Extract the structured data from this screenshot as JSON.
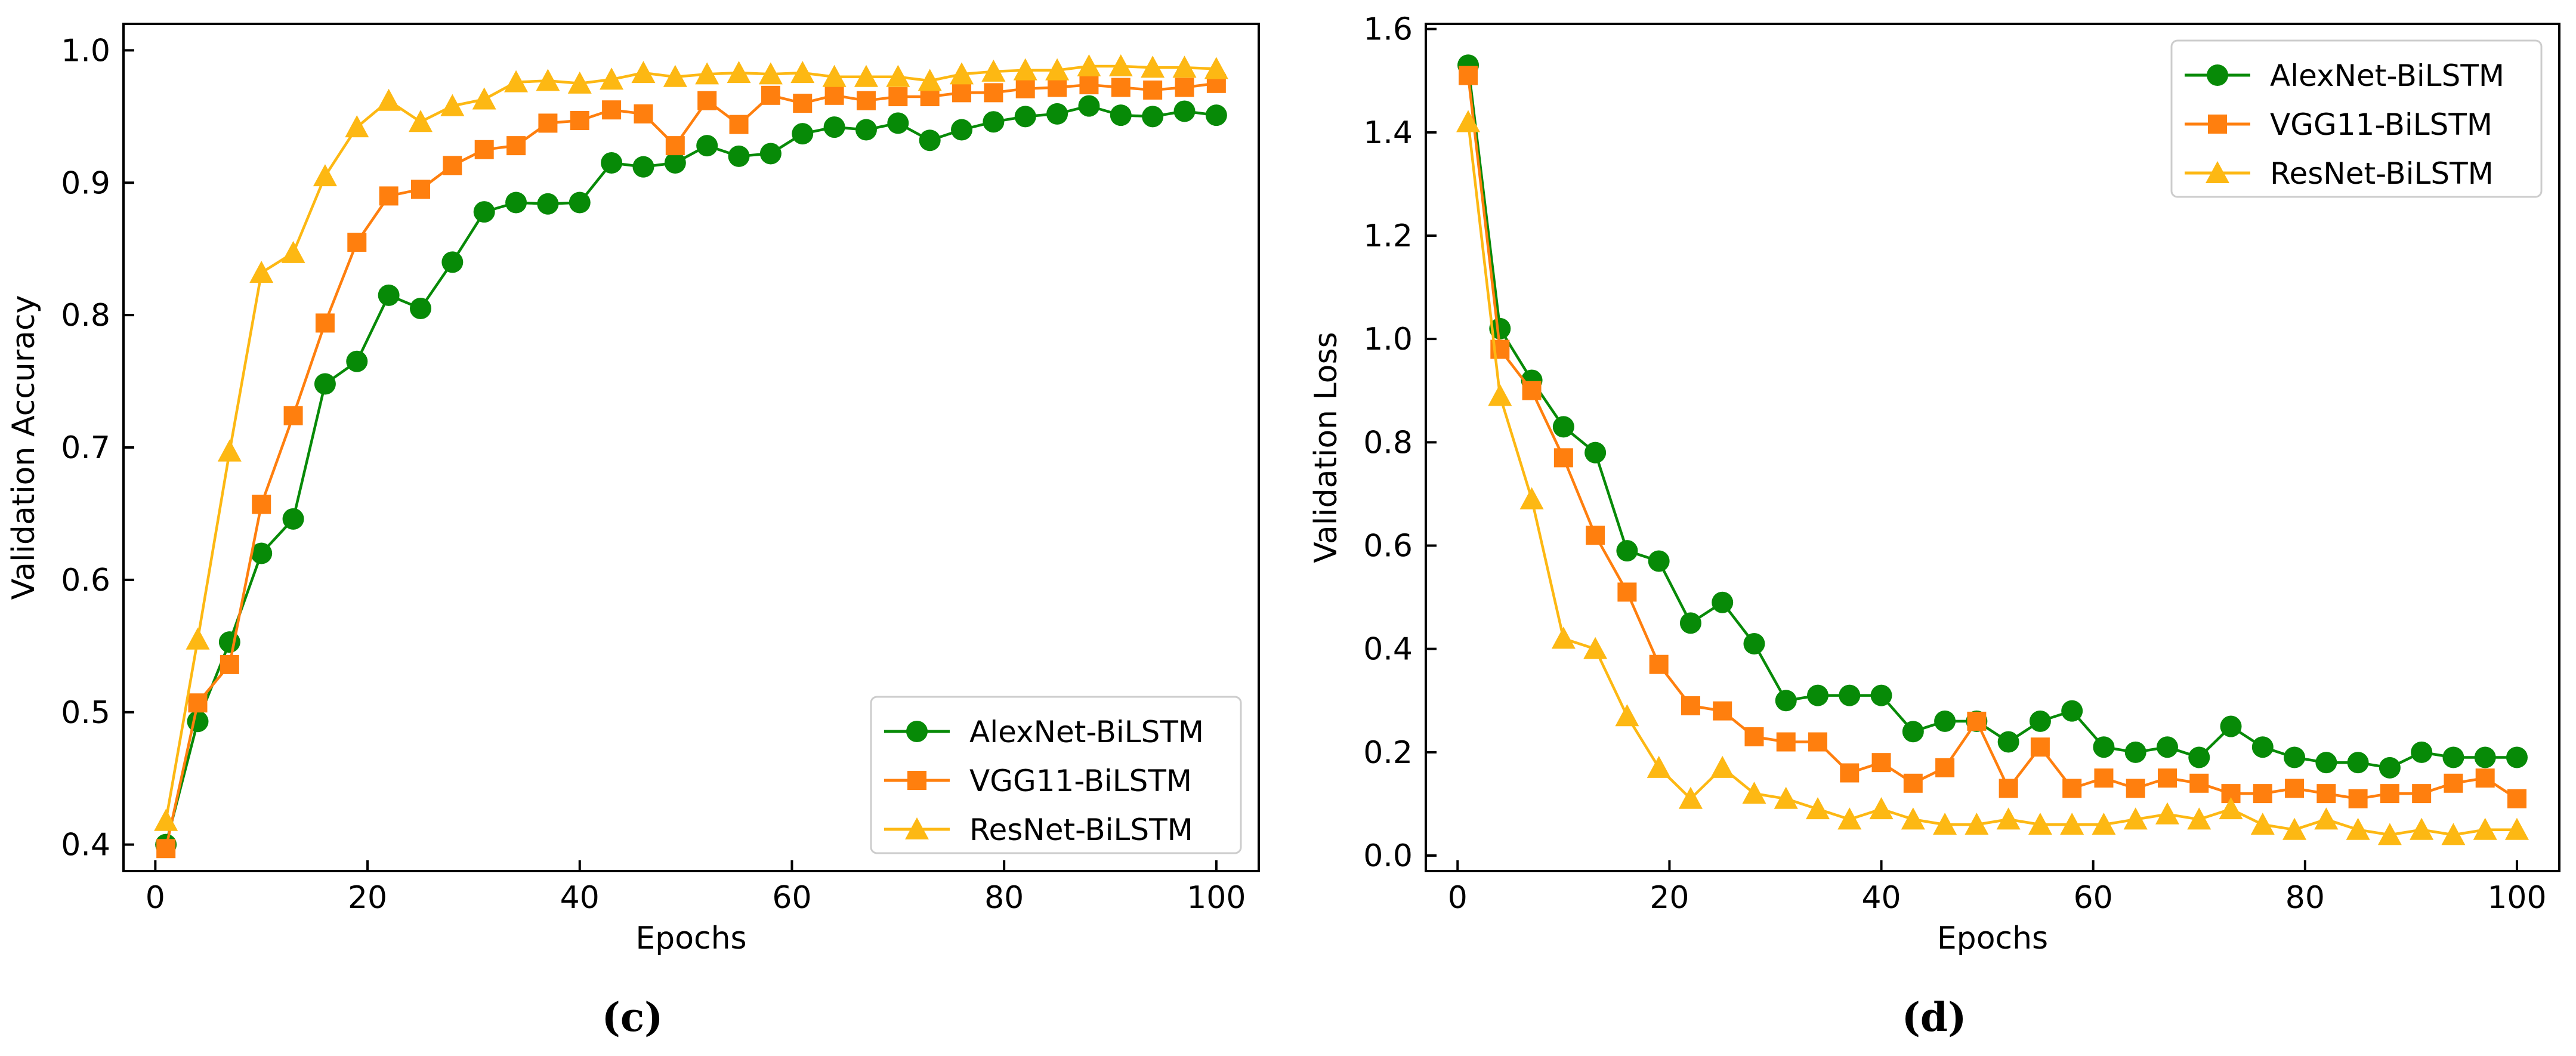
{
  "chart_data": [
    {
      "panel": "c",
      "type": "line",
      "caption": "(c)",
      "xlabel": "Epochs",
      "ylabel": "Validation Accuracy",
      "xlim": [
        -3,
        104
      ],
      "ylim": [
        0.38,
        1.02
      ],
      "xticks": [
        0,
        20,
        40,
        60,
        80,
        100
      ],
      "xtick_labels": [
        "0",
        "20",
        "40",
        "60",
        "80",
        "100"
      ],
      "yticks": [
        0.4,
        0.5,
        0.6,
        0.7,
        0.8,
        0.9,
        1.0
      ],
      "ytick_labels": [
        "0.4",
        "0.5",
        "0.6",
        "0.7",
        "0.8",
        "0.9",
        "1.0"
      ],
      "legend_position": "lower right",
      "grid": false,
      "series": [
        {
          "name": "AlexNet-BiLSTM",
          "color": "#078a07",
          "marker": "circle",
          "x": [
            1,
            4,
            7,
            10,
            13,
            16,
            19,
            22,
            25,
            28,
            31,
            34,
            37,
            40,
            43,
            46,
            49,
            52,
            55,
            58,
            61,
            64,
            67,
            70,
            73,
            76,
            79,
            82,
            85,
            88,
            91,
            94,
            97,
            100
          ],
          "values": [
            0.4,
            0.493,
            0.553,
            0.62,
            0.646,
            0.748,
            0.765,
            0.815,
            0.805,
            0.84,
            0.878,
            0.885,
            0.884,
            0.885,
            0.915,
            0.912,
            0.915,
            0.928,
            0.92,
            0.922,
            0.937,
            0.942,
            0.94,
            0.945,
            0.932,
            0.94,
            0.946,
            0.95,
            0.952,
            0.958,
            0.951,
            0.95,
            0.954,
            0.951
          ]
        },
        {
          "name": "VGG11-BiLSTM",
          "color": "#ff7f0e",
          "marker": "square",
          "x": [
            1,
            4,
            7,
            10,
            13,
            16,
            19,
            22,
            25,
            28,
            31,
            34,
            37,
            40,
            43,
            46,
            49,
            52,
            55,
            58,
            61,
            64,
            67,
            70,
            73,
            76,
            79,
            82,
            85,
            88,
            91,
            94,
            97,
            100
          ],
          "values": [
            0.397,
            0.507,
            0.536,
            0.657,
            0.724,
            0.794,
            0.855,
            0.89,
            0.895,
            0.913,
            0.925,
            0.928,
            0.945,
            0.947,
            0.955,
            0.952,
            0.928,
            0.962,
            0.944,
            0.966,
            0.96,
            0.966,
            0.962,
            0.965,
            0.965,
            0.968,
            0.968,
            0.971,
            0.972,
            0.974,
            0.972,
            0.97,
            0.972,
            0.975
          ]
        },
        {
          "name": "ResNet-BiLSTM",
          "color": "#fdb813",
          "marker": "triangle",
          "x": [
            1,
            4,
            7,
            10,
            13,
            16,
            19,
            22,
            25,
            28,
            31,
            34,
            37,
            40,
            43,
            46,
            49,
            52,
            55,
            58,
            61,
            64,
            67,
            70,
            73,
            76,
            79,
            82,
            85,
            88,
            91,
            94,
            97,
            100
          ],
          "values": [
            0.418,
            0.555,
            0.697,
            0.832,
            0.847,
            0.905,
            0.942,
            0.962,
            0.946,
            0.958,
            0.963,
            0.976,
            0.977,
            0.975,
            0.978,
            0.983,
            0.98,
            0.982,
            0.983,
            0.982,
            0.983,
            0.98,
            0.98,
            0.98,
            0.977,
            0.982,
            0.984,
            0.985,
            0.985,
            0.988,
            0.988,
            0.987,
            0.987,
            0.986
          ]
        }
      ]
    },
    {
      "panel": "d",
      "type": "line",
      "caption": "(d)",
      "xlabel": "Epochs",
      "ylabel": "Validation Loss",
      "xlim": [
        -3,
        104
      ],
      "ylim": [
        -0.03,
        1.61
      ],
      "xticks": [
        0,
        20,
        40,
        60,
        80,
        100
      ],
      "xtick_labels": [
        "0",
        "20",
        "40",
        "60",
        "80",
        "100"
      ],
      "yticks": [
        0.0,
        0.2,
        0.4,
        0.6,
        0.8,
        1.0,
        1.2,
        1.4,
        1.6
      ],
      "ytick_labels": [
        "0.0",
        "0.2",
        "0.4",
        "0.6",
        "0.8",
        "1.0",
        "1.2",
        "1.4",
        "1.6"
      ],
      "legend_position": "upper right",
      "grid": false,
      "series": [
        {
          "name": "AlexNet-BiLSTM",
          "color": "#078a07",
          "marker": "circle",
          "x": [
            1,
            4,
            7,
            10,
            13,
            16,
            19,
            22,
            25,
            28,
            31,
            34,
            37,
            40,
            43,
            46,
            49,
            52,
            55,
            58,
            61,
            64,
            67,
            70,
            73,
            76,
            79,
            82,
            85,
            88,
            91,
            94,
            97,
            100
          ],
          "values": [
            1.53,
            1.02,
            0.92,
            0.83,
            0.78,
            0.59,
            0.57,
            0.45,
            0.49,
            0.41,
            0.3,
            0.31,
            0.31,
            0.31,
            0.24,
            0.26,
            0.26,
            0.22,
            0.26,
            0.28,
            0.21,
            0.2,
            0.21,
            0.19,
            0.25,
            0.21,
            0.19,
            0.18,
            0.18,
            0.17,
            0.2,
            0.19,
            0.19,
            0.19
          ]
        },
        {
          "name": "VGG11-BiLSTM",
          "color": "#ff7f0e",
          "marker": "square",
          "x": [
            1,
            4,
            7,
            10,
            13,
            16,
            19,
            22,
            25,
            28,
            31,
            34,
            37,
            40,
            43,
            46,
            49,
            52,
            55,
            58,
            61,
            64,
            67,
            70,
            73,
            76,
            79,
            82,
            85,
            88,
            91,
            94,
            97,
            100
          ],
          "values": [
            1.51,
            0.98,
            0.9,
            0.77,
            0.62,
            0.51,
            0.37,
            0.29,
            0.28,
            0.23,
            0.22,
            0.22,
            0.16,
            0.18,
            0.14,
            0.17,
            0.26,
            0.13,
            0.21,
            0.13,
            0.15,
            0.13,
            0.15,
            0.14,
            0.12,
            0.12,
            0.13,
            0.12,
            0.11,
            0.12,
            0.12,
            0.14,
            0.15,
            0.11
          ]
        },
        {
          "name": "ResNet-BiLSTM",
          "color": "#fdb813",
          "marker": "triangle",
          "x": [
            1,
            4,
            7,
            10,
            13,
            16,
            19,
            22,
            25,
            28,
            31,
            34,
            37,
            40,
            43,
            46,
            49,
            52,
            55,
            58,
            61,
            64,
            67,
            70,
            73,
            76,
            79,
            82,
            85,
            88,
            91,
            94,
            97,
            100
          ],
          "values": [
            1.42,
            0.89,
            0.69,
            0.42,
            0.4,
            0.27,
            0.17,
            0.11,
            0.17,
            0.12,
            0.11,
            0.09,
            0.07,
            0.09,
            0.07,
            0.06,
            0.06,
            0.07,
            0.06,
            0.06,
            0.06,
            0.07,
            0.08,
            0.07,
            0.09,
            0.06,
            0.05,
            0.07,
            0.05,
            0.04,
            0.05,
            0.04,
            0.05,
            0.05
          ]
        }
      ]
    }
  ]
}
